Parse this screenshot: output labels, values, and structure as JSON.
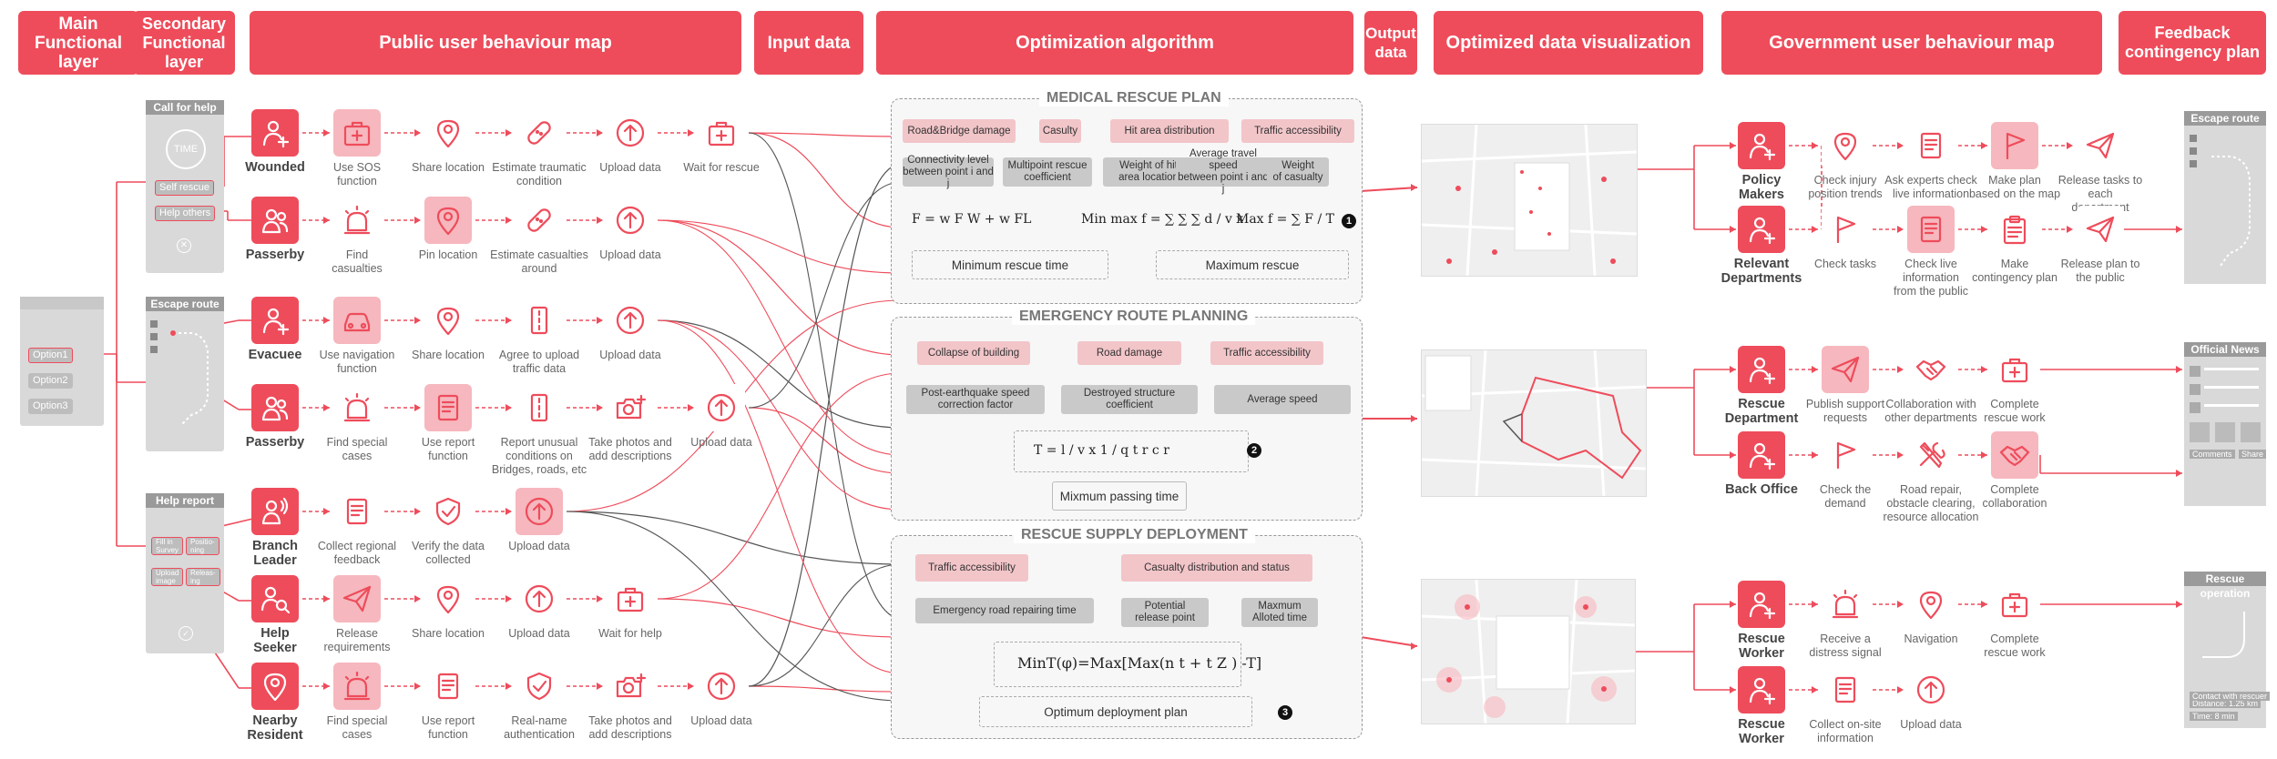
{
  "headers": [
    {
      "id": "main",
      "label": "Main\nFunctional\nlayer"
    },
    {
      "id": "secondary",
      "label": "Secondary\nFunctional\nlayer"
    },
    {
      "id": "public",
      "label": "Public user behaviour map"
    },
    {
      "id": "input",
      "label": "Input data"
    },
    {
      "id": "optim",
      "label": "Optimization algorithm"
    },
    {
      "id": "output",
      "label": "Output\ndata"
    },
    {
      "id": "viz",
      "label": "Optimized data visualization"
    },
    {
      "id": "gov",
      "label": "Government user behaviour map"
    },
    {
      "id": "feedback",
      "label": "Feedback\ncontingency plan"
    }
  ],
  "main_layer": {
    "options": [
      "Option1",
      "Option2",
      "Option3"
    ]
  },
  "secondary_layer": {
    "call_for_help": {
      "title": "Call for help",
      "time": "TIME",
      "self_rescue": "Self rescue",
      "help_others": "Help others"
    },
    "escape_route": {
      "title": "Escape route"
    },
    "help_report": {
      "title": "Help report",
      "fill": "Fill in\nSurvey",
      "upload": "Upload\nimage",
      "position": "Positio-\nning",
      "releasing": "Releas-\ning"
    }
  },
  "actors": {
    "wounded": "Wounded",
    "passerby1": "Passerby",
    "evacuee": "Evacuee",
    "passerby2": "Passerby",
    "branch": "Branch\nLeader",
    "seeker": "Help\nSeeker",
    "resident": "Nearby\nResident",
    "policy": "Policy\nMakers",
    "relevant": "Relevant\nDepartments",
    "rescue_dept": "Rescue\nDepartment",
    "back_office": "Back Office",
    "worker1": "Rescue\nWorker",
    "worker2": "Rescue\nWorker"
  },
  "steps": {
    "w1": "Use SOS\nfunction",
    "w2": "Share location",
    "w3": "Estimate traumatic\ncondition",
    "w4": "Upload data",
    "w5": "Wait for rescue",
    "p1": "Find\ncasualties",
    "p2": "Pin location",
    "p3": "Estimate casualties\naround",
    "p4": "Upload data",
    "e1": "Use navigation\nfunction",
    "e2": "Share location",
    "e3": "Agree to upload\ntraffic data",
    "e4": "Upload data",
    "q1": "Find special\ncases",
    "q2": "Use report\nfunction",
    "q3": "Report unusual\nconditions on\nBridges, roads, etc",
    "q4": "Take photos and\nadd descriptions",
    "q5": "Upload data",
    "b1": "Collect regional\nfeedback",
    "b2": "Verify the data\ncollected",
    "b3": "Upload data",
    "h1": "Release\nrequirements",
    "h2": "Share location",
    "h3": "Upload data",
    "h4": "Wait for help",
    "n1": "Find special\ncases",
    "n2": "Use report\nfunction",
    "n3": "Real-name\nauthentication",
    "n4": "Take photos and\nadd descriptions",
    "n5": "Upload data",
    "g1": "Check injury\nposition trends",
    "g2": "Ask experts check\nlive information",
    "g3": "Make plan\nbased on the map",
    "g4": "Release tasks to each\ndepartment",
    "r1": "Check tasks",
    "r2": "Check live\ninformation\nfrom the public",
    "r3": "Make\ncontingency plan",
    "r4": "Release plan to\nthe public",
    "d1": "Publish support\nrequests",
    "d2": "Collaboration with\nother departments",
    "d3": "Complete\nrescue work",
    "o1": "Check the\ndemand",
    "o2": "Road repair,\nobstacle clearing,\nresource allocation",
    "o3": "Complete\ncollaboration",
    "k1": "Receive a\ndistress signal",
    "k2": "Navigation",
    "k3": "Complete\nrescue work",
    "m1": "Collect on-site\ninformation",
    "m2": "Upload data"
  },
  "medical": {
    "title": "MEDICAL RESCUE PLAN",
    "inputs": [
      "Road&Bridge damage",
      "Casulty",
      "Hit area distribution",
      "Traffic  accessibility"
    ],
    "factors": [
      "Connectivity level\nbetween point i and j",
      "Multipoint rescue\ncoefficient",
      "Weight of hit\narea location",
      "Average travel speed\nbetween point i and j",
      "Weight\nof casualty"
    ],
    "f1": "F = w F W  + w FL",
    "f2": "Min max f = ∑ ∑ ∑ d / v  x",
    "f3": "Max f = ∑ F / T",
    "out1": "Minimum rescue time",
    "out2": "Maximum rescue",
    "num": "1"
  },
  "route": {
    "title": "EMERGENCY ROUTE PLANNING",
    "inputs": [
      "Collapse of building",
      "Road damage",
      "Traffic  accessibility"
    ],
    "factors": [
      "Post-earthquake speed\ncorrection factor",
      "Destroyed structure\ncoefficient",
      "Average speed"
    ],
    "f1": "T =  l / v  x  1 / q t r c r",
    "out1": "Mixmum passing time",
    "num": "2"
  },
  "supply": {
    "title": "RESCUE SUPPLY DEPLOYMENT",
    "inputs": [
      "Traffic  accessibility",
      "Casualty distribution and status"
    ],
    "factors": [
      "Emergency road repairing time",
      "Potential\nrelease point",
      "Maxmum\nAlloted time"
    ],
    "f1": "MinT(φ)=Max[Max(n  t  + t Z  ) -T]",
    "out1": "Optimum deployment plan",
    "num": "3"
  },
  "feedback": {
    "escape": "Escape route",
    "news": "Official News",
    "comments": "Comments",
    "share": "Share",
    "rescue_op": "Rescue operation",
    "distance": "Distance: 1.25 km",
    "time": "Time: 8 min",
    "contact": "Contact with rescuer"
  },
  "colors": {
    "accent": "#ee4c5b",
    "accent_light": "#f6b7be",
    "gray": "#bdbdbd"
  },
  "icons": [
    "person-plus-icon",
    "people-icon",
    "person-radio-icon",
    "person-search-icon",
    "siren-icon",
    "location-pin-icon",
    "bandage-icon",
    "upload-icon",
    "hospital-box-icon",
    "car-icon",
    "road-icon",
    "camera-plus-icon",
    "document-icon",
    "shield-check-icon",
    "paper-plane-icon",
    "flag-icon",
    "handshake-icon",
    "tools-icon",
    "clipboard-icon"
  ]
}
